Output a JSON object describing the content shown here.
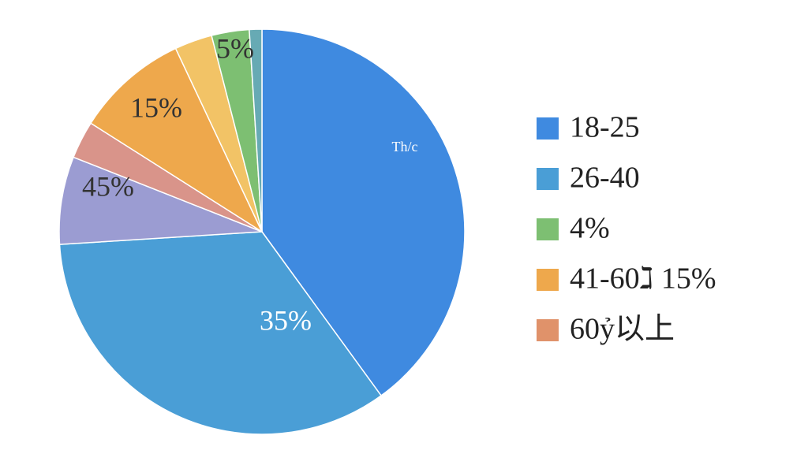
{
  "chart_data": {
    "type": "pie",
    "values": [
      40,
      34,
      7,
      3,
      9,
      3,
      3,
      1
    ],
    "colors": [
      "#3f8ae0",
      "#4a9ed6",
      "#9b9cd2",
      "#d9948a",
      "#eea84c",
      "#f2c366",
      "#7dbf72",
      "#67aab4"
    ],
    "legend": [
      {
        "label": "18-25",
        "color": "#3f8ae0"
      },
      {
        "label": "26-40",
        "color": "#4a9ed6"
      },
      {
        "label": "4%",
        "color": "#7dbf72"
      },
      {
        "label": "41-60ℷ 15%",
        "color": "#eea84c"
      },
      {
        "label": "60ỷ以上",
        "color": "#e0926a"
      }
    ],
    "annotations": [
      "Th/c",
      "35%",
      "45%",
      "15%",
      "5%"
    ]
  }
}
